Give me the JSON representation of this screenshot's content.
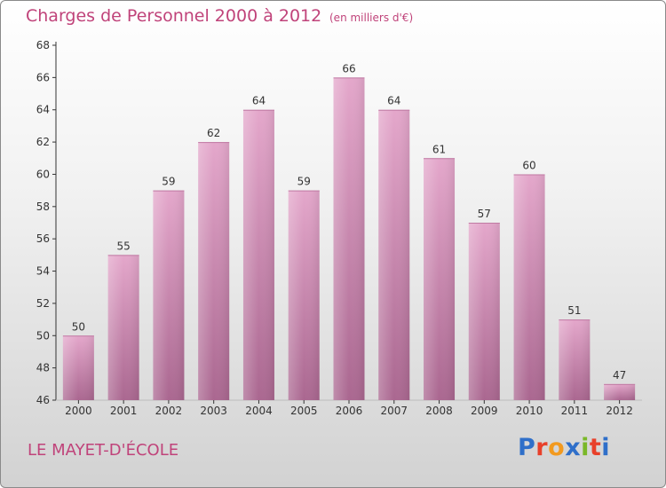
{
  "header": {
    "title": "Charges de Personnel 2000 à 2012",
    "subtitle": "(en milliers d'€)"
  },
  "footer": {
    "place": "LE MAYET-D'ÉCOLE",
    "logo_text": "Proxiti"
  },
  "colors": {
    "title": "#c0437a",
    "bar_top": "#e4a7cb",
    "bar_bottom": "#aa6790",
    "axis": "#333333",
    "logo": [
      "#2f6fc9",
      "#e8402a",
      "#f29a1f",
      "#2f6fc9",
      "#7ab828",
      "#e8402a",
      "#2f6fc9"
    ]
  },
  "chart_data": {
    "type": "bar",
    "title": "Charges de Personnel 2000 à 2012",
    "subtitle": "(en milliers d'€)",
    "categories": [
      "2000",
      "2001",
      "2002",
      "2003",
      "2004",
      "2005",
      "2006",
      "2007",
      "2008",
      "2009",
      "2010",
      "2011",
      "2012"
    ],
    "values": [
      50,
      55,
      59,
      62,
      64,
      59,
      66,
      64,
      61,
      57,
      60,
      51,
      47
    ],
    "ylim": [
      46,
      68
    ],
    "yticks": [
      46,
      48,
      50,
      52,
      54,
      56,
      58,
      60,
      62,
      64,
      66,
      68
    ],
    "xlabel": "",
    "ylabel": "",
    "grid": false,
    "data_labels": true
  }
}
